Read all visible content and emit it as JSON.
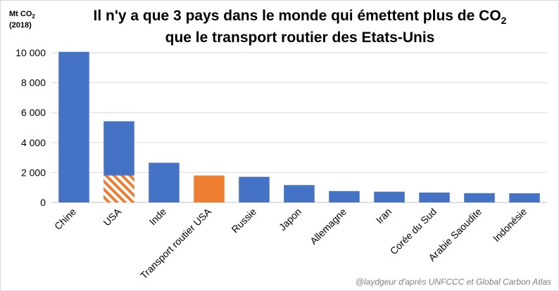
{
  "chart_data": {
    "type": "bar",
    "title_lines": [
      "Il n'y a que 3 pays dans le monde qui émettent plus de CO",
      "que le transport routier des Etats-Unis"
    ],
    "title_subscript": "2",
    "ylabel_lines": [
      "Mt CO",
      "(2018)"
    ],
    "ylabel_subscript": "2",
    "source": "@laydgeur d'après UNFCCC et Global Carbon Atlas",
    "ylim": [
      0,
      10000
    ],
    "y_ticks": [
      0,
      2000,
      4000,
      6000,
      8000,
      10000
    ],
    "y_tick_labels": [
      "0",
      "2 000",
      "4 000",
      "6 000",
      "8 000",
      "10 000"
    ],
    "grid": true,
    "categories": [
      "Chine",
      "USA",
      "Inde",
      "Transport routier USA",
      "Russie",
      "Japon",
      "Allemagne",
      "Iran",
      "Corée du Sud",
      "Arabie Saoudite",
      "Indonésie"
    ],
    "values": [
      10060,
      5420,
      2650,
      1800,
      1710,
      1160,
      760,
      720,
      660,
      620,
      610
    ],
    "highlight": {
      "USA": {
        "hatched_part": 1800
      },
      "Transport routier USA": {
        "solid_color": "#ed7d31"
      }
    },
    "colors": {
      "bar": "#4472c4",
      "highlight": "#ed7d31",
      "grid": "#d9d9d9",
      "axis": "#bfbfbf"
    }
  }
}
